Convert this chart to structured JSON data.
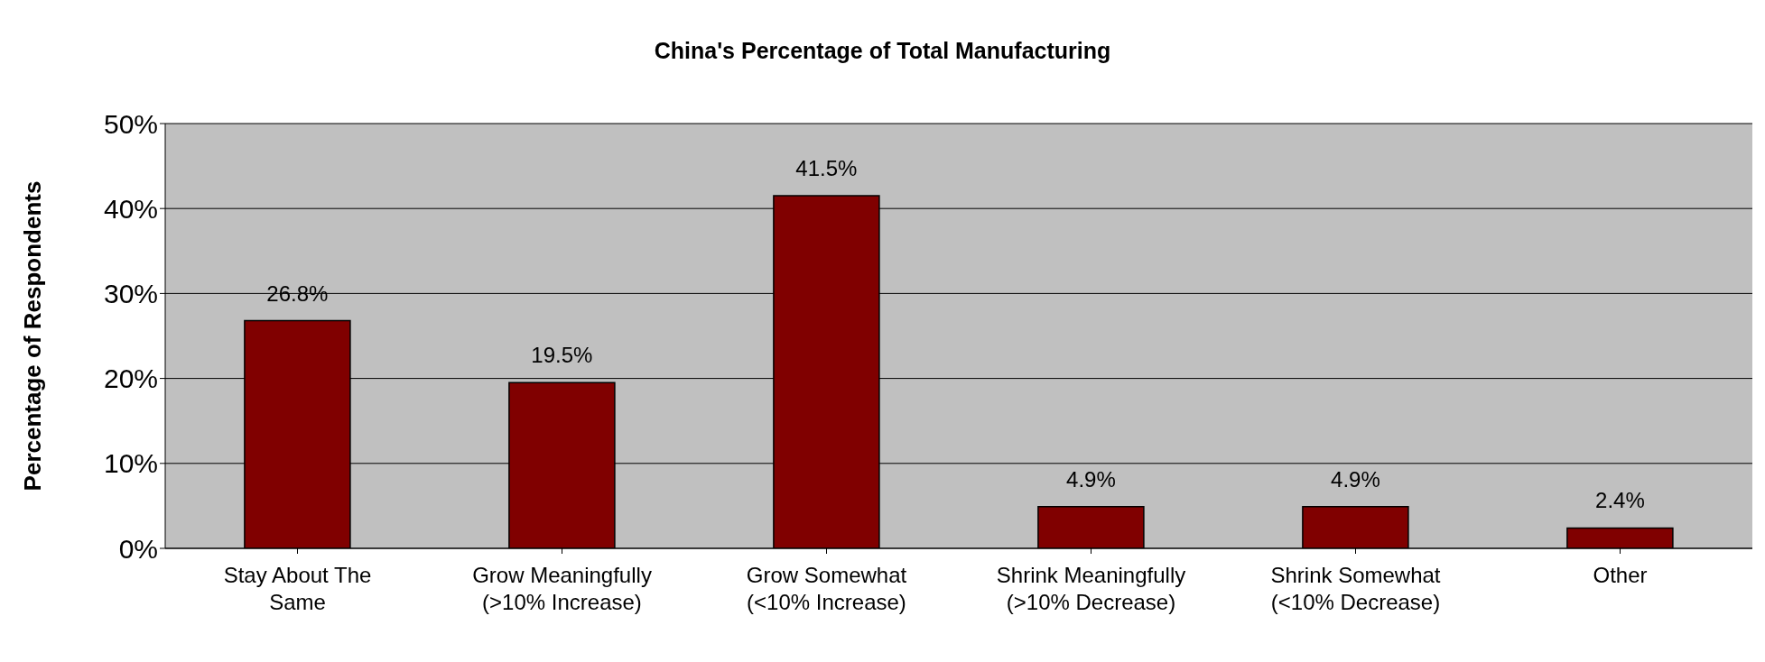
{
  "chart_data": {
    "type": "bar",
    "title": "China's Percentage of Total Manufacturing",
    "ylabel": "Percentage of Respondents",
    "categories": [
      "Stay About The Same",
      "Grow Meaningfully (>10% Increase)",
      "Grow Somewhat (<10% Increase)",
      "Shrink Meaningfully (>10% Decrease)",
      "Shrink Somewhat (<10% Decrease)",
      "Other"
    ],
    "values": [
      26.8,
      19.5,
      41.5,
      4.9,
      4.9,
      2.4
    ],
    "value_labels": [
      "26.8%",
      "19.5%",
      "41.5%",
      "4.9%",
      "4.9%",
      "2.4%"
    ],
    "color": "#800000",
    "ylim": [
      0,
      50
    ],
    "yticks": [
      {
        "value": 0,
        "label": "0%"
      },
      {
        "value": 10,
        "label": "10%"
      },
      {
        "value": 20,
        "label": "20%"
      },
      {
        "value": 30,
        "label": "30%"
      },
      {
        "value": 40,
        "label": "40%"
      },
      {
        "value": 50,
        "label": "50%"
      }
    ],
    "grid": "y",
    "legend": false
  }
}
